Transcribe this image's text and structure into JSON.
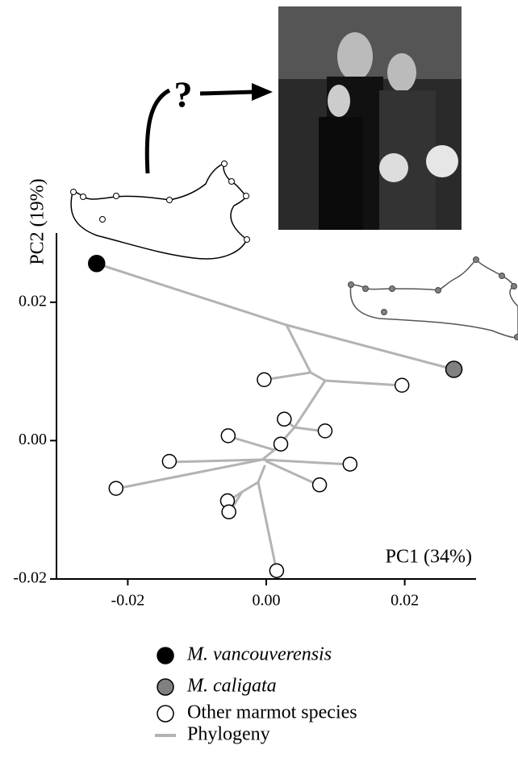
{
  "chart_data": {
    "type": "scatter",
    "annotation": "?",
    "xlabel": "PC1 (34%)",
    "ylabel": "PC2 (19%)",
    "xlim": [
      -0.0303,
      0.0303
    ],
    "ylim": [
      -0.02,
      0.03
    ],
    "xticks": [
      -0.02,
      {
        "value": 0,
        "label": "0.00"
      },
      0.02
    ],
    "yticks": [
      -0.02,
      {
        "value": 0,
        "label": "0.00"
      },
      0.02
    ],
    "series": [
      {
        "name": "M. vancouverensis",
        "color": "#000000",
        "x": [
          -0.0245
        ],
        "y": [
          0.0256
        ]
      },
      {
        "name": "M. caligata",
        "color": "#808080",
        "x": [
          0.0271
        ],
        "y": [
          0.0103
        ]
      },
      {
        "name": "Other marmot species",
        "color": "#ffffff",
        "x": [
          -0.0003,
          0.0196,
          0.0026,
          0.0085,
          -0.0055,
          0.0021,
          -0.014,
          0.0121,
          -0.0217,
          0.0077,
          -0.0056,
          -0.0054,
          0.0015
        ],
        "y": [
          0.0088,
          0.008,
          0.0031,
          0.0014,
          0.0007,
          -0.0005,
          -0.003,
          -0.0034,
          -0.0069,
          -0.0064,
          -0.0087,
          -0.0103,
          -0.0188
        ]
      }
    ],
    "phylogeny_label": "Phylogeny"
  }
}
